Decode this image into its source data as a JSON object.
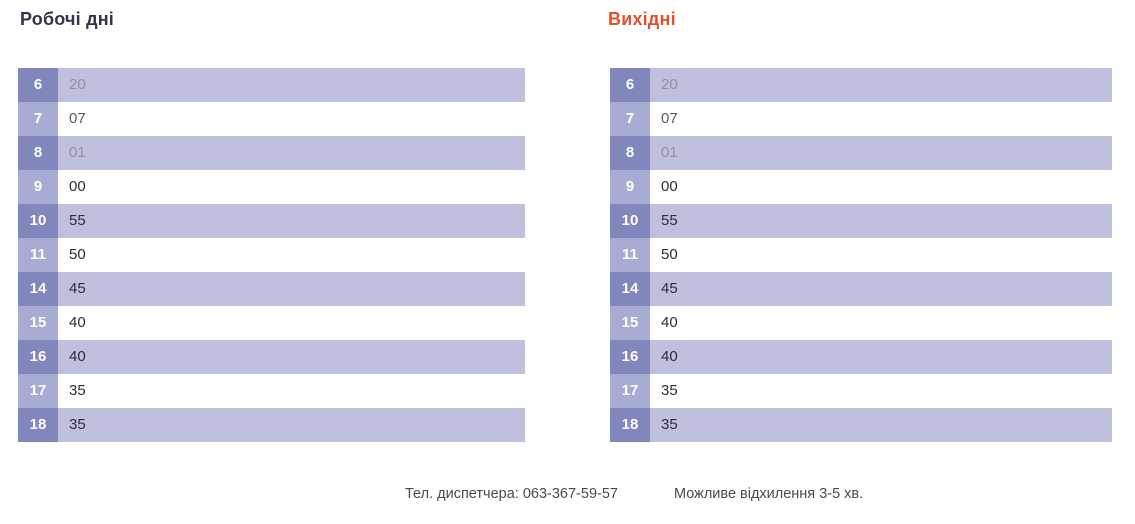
{
  "sections": [
    {
      "id": "workdays",
      "title": "Робочі дні",
      "title_color": "#333447",
      "rows": [
        {
          "hour": "6",
          "minutes": "20",
          "tone": "muted"
        },
        {
          "hour": "7",
          "minutes": "07",
          "tone": "medium"
        },
        {
          "hour": "8",
          "minutes": "01",
          "tone": "muted"
        },
        {
          "hour": "9",
          "minutes": "00",
          "tone": "dark"
        },
        {
          "hour": "10",
          "minutes": "55",
          "tone": "dark"
        },
        {
          "hour": "11",
          "minutes": "50",
          "tone": "dark"
        },
        {
          "hour": "14",
          "minutes": "45",
          "tone": "dark"
        },
        {
          "hour": "15",
          "minutes": "40",
          "tone": "dark"
        },
        {
          "hour": "16",
          "minutes": "40",
          "tone": "dark"
        },
        {
          "hour": "17",
          "minutes": "35",
          "tone": "dark"
        },
        {
          "hour": "18",
          "minutes": "35",
          "tone": "dark"
        }
      ]
    },
    {
      "id": "weekend",
      "title": "Вихідні",
      "title_color": "#e0512f",
      "rows": [
        {
          "hour": "6",
          "minutes": "20",
          "tone": "muted"
        },
        {
          "hour": "7",
          "minutes": "07",
          "tone": "medium"
        },
        {
          "hour": "8",
          "minutes": "01",
          "tone": "muted"
        },
        {
          "hour": "9",
          "minutes": "00",
          "tone": "dark"
        },
        {
          "hour": "10",
          "minutes": "55",
          "tone": "dark"
        },
        {
          "hour": "11",
          "minutes": "50",
          "tone": "dark"
        },
        {
          "hour": "14",
          "minutes": "45",
          "tone": "dark"
        },
        {
          "hour": "15",
          "minutes": "40",
          "tone": "dark"
        },
        {
          "hour": "16",
          "minutes": "40",
          "tone": "dark"
        },
        {
          "hour": "17",
          "minutes": "35",
          "tone": "dark"
        },
        {
          "hour": "18",
          "minutes": "35",
          "tone": "dark"
        }
      ]
    }
  ],
  "footer": {
    "phone": "Тел. диспетчера: 063-367-59-57",
    "note": "Можливе відхилення 3-5 хв."
  },
  "colors": {
    "workdays_title": "#333447",
    "weekend_title": "#e0512f",
    "hour_cell_dark": "#8186bc",
    "hour_cell_light": "#a9acd2",
    "row_band": "#bfc0dd",
    "minutes_dark": "#2d2d35",
    "minutes_muted": "#90919d"
  }
}
